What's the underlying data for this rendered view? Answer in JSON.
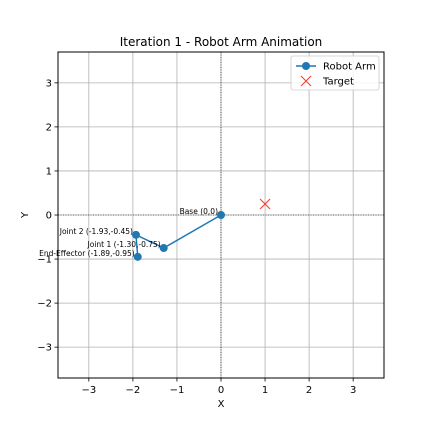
{
  "chart_data": {
    "type": "line",
    "title": "Iteration 1 - Robot Arm Animation",
    "xlabel": "X",
    "ylabel": "Y",
    "xlim": [
      -3.7,
      3.7
    ],
    "ylim": [
      -3.7,
      3.7
    ],
    "xticks": [
      -3,
      -2,
      -1,
      0,
      1,
      2,
      3
    ],
    "yticks": [
      -3,
      -2,
      -1,
      0,
      1,
      2,
      3
    ],
    "xtick_labels": [
      "−3",
      "−2",
      "−1",
      "0",
      "1",
      "2",
      "3"
    ],
    "ytick_labels": [
      "−3",
      "−2",
      "−1",
      "0",
      "1",
      "2",
      "3"
    ],
    "grid": true,
    "zero_lines": true,
    "legend_position": "top-right",
    "series": [
      {
        "name": "Robot Arm",
        "marker": "circle",
        "color": "#1f77b4",
        "points": [
          {
            "x": 0,
            "y": 0,
            "label": "Base (0,0)"
          },
          {
            "x": -1.3,
            "y": -0.75,
            "label": "Joint 1 (-1.30,-0.75)"
          },
          {
            "x": -1.93,
            "y": -0.45,
            "label": "Joint 2 (-1.93,-0.45)"
          },
          {
            "x": -1.89,
            "y": -0.95,
            "label": "End-Effector (-1.89,-0.95)"
          }
        ]
      },
      {
        "name": "Target",
        "marker": "x",
        "color": "#ff3b30",
        "points": [
          {
            "x": 1,
            "y": 0.25
          }
        ]
      }
    ]
  }
}
